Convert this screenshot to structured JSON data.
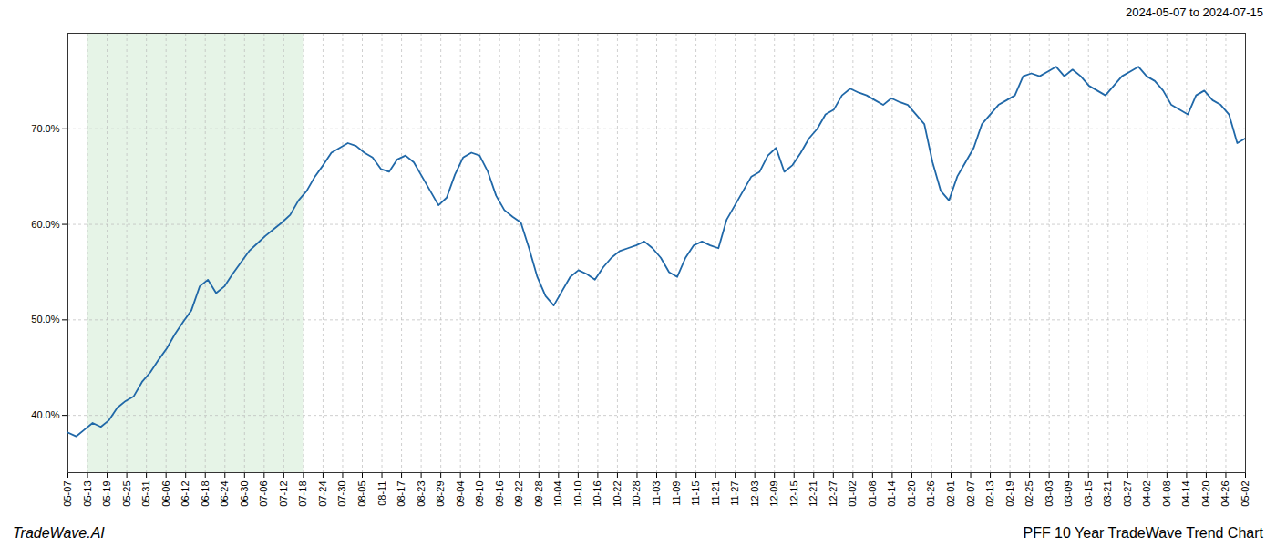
{
  "chart_data": {
    "type": "line",
    "title": "PFF 10 Year TradeWave Trend Chart",
    "subtitle": "2024-05-07 to 2024-07-15",
    "annotations": [
      "TradeWave.AI"
    ],
    "color": "#2068a8",
    "grid": true,
    "xlim": [
      0,
      60
    ],
    "xticks": [
      {
        "value": 0,
        "label": "05-07"
      },
      {
        "value": 1,
        "label": "05-13"
      },
      {
        "value": 2,
        "label": "05-19"
      },
      {
        "value": 3,
        "label": "05-25"
      },
      {
        "value": 4,
        "label": "05-31"
      },
      {
        "value": 5,
        "label": "06-06"
      },
      {
        "value": 6,
        "label": "06-12"
      },
      {
        "value": 7,
        "label": "06-18"
      },
      {
        "value": 8,
        "label": "06-24"
      },
      {
        "value": 9,
        "label": "06-30"
      },
      {
        "value": 10,
        "label": "07-06"
      },
      {
        "value": 11,
        "label": "07-12"
      },
      {
        "value": 12,
        "label": "07-18"
      },
      {
        "value": 13,
        "label": "07-24"
      },
      {
        "value": 14,
        "label": "07-30"
      },
      {
        "value": 15,
        "label": "08-05"
      },
      {
        "value": 16,
        "label": "08-11"
      },
      {
        "value": 17,
        "label": "08-17"
      },
      {
        "value": 18,
        "label": "08-23"
      },
      {
        "value": 19,
        "label": "08-29"
      },
      {
        "value": 20,
        "label": "09-04"
      },
      {
        "value": 21,
        "label": "09-10"
      },
      {
        "value": 22,
        "label": "09-16"
      },
      {
        "value": 23,
        "label": "09-22"
      },
      {
        "value": 24,
        "label": "09-28"
      },
      {
        "value": 25,
        "label": "10-04"
      },
      {
        "value": 26,
        "label": "10-10"
      },
      {
        "value": 27,
        "label": "10-16"
      },
      {
        "value": 28,
        "label": "10-22"
      },
      {
        "value": 29,
        "label": "10-28"
      },
      {
        "value": 30,
        "label": "11-03"
      },
      {
        "value": 31,
        "label": "11-09"
      },
      {
        "value": 32,
        "label": "11-15"
      },
      {
        "value": 33,
        "label": "11-21"
      },
      {
        "value": 34,
        "label": "11-27"
      },
      {
        "value": 35,
        "label": "12-03"
      },
      {
        "value": 36,
        "label": "12-09"
      },
      {
        "value": 37,
        "label": "12-15"
      },
      {
        "value": 38,
        "label": "12-21"
      },
      {
        "value": 39,
        "label": "12-27"
      },
      {
        "value": 40,
        "label": "01-02"
      },
      {
        "value": 41,
        "label": "01-08"
      },
      {
        "value": 42,
        "label": "01-14"
      },
      {
        "value": 43,
        "label": "01-20"
      },
      {
        "value": 44,
        "label": "01-26"
      },
      {
        "value": 45,
        "label": "02-01"
      },
      {
        "value": 46,
        "label": "02-07"
      },
      {
        "value": 47,
        "label": "02-13"
      },
      {
        "value": 48,
        "label": "02-19"
      },
      {
        "value": 49,
        "label": "02-25"
      },
      {
        "value": 50,
        "label": "03-03"
      },
      {
        "value": 51,
        "label": "03-09"
      },
      {
        "value": 52,
        "label": "03-15"
      },
      {
        "value": 53,
        "label": "03-21"
      },
      {
        "value": 54,
        "label": "03-27"
      },
      {
        "value": 55,
        "label": "04-02"
      },
      {
        "value": 56,
        "label": "04-08"
      },
      {
        "value": 57,
        "label": "04-14"
      },
      {
        "value": 58,
        "label": "04-20"
      },
      {
        "value": 59,
        "label": "04-26"
      },
      {
        "value": 60,
        "label": "05-02"
      }
    ],
    "ylim": [
      34.0,
      80.0
    ],
    "yticks": [
      {
        "value": 40.0,
        "label": "40.0%"
      },
      {
        "value": 50.0,
        "label": "50.0%"
      },
      {
        "value": 60.0,
        "label": "60.0%"
      },
      {
        "value": 70.0,
        "label": "70.0%"
      }
    ],
    "spans": [
      {
        "x": [
          1,
          12
        ],
        "color": "#c8e6c9"
      }
    ],
    "x": [
      0,
      0.41958,
      0.839161,
      1.258741,
      1.678322,
      2.097902,
      2.517483,
      2.937063,
      3.356643,
      3.776224,
      4.195804,
      4.615385,
      5.034965,
      5.454545,
      5.874126,
      6.293706,
      6.713287,
      7.132867,
      7.552448,
      7.972028,
      8.391608,
      8.811189,
      9.230769,
      9.65035,
      10.06993,
      10.48951,
      10.909091,
      11.328671,
      11.748252,
      12.167832,
      12.587413,
      13.006993,
      13.426573,
      13.846154,
      14.265734,
      14.685315,
      15.104895,
      15.524476,
      15.944056,
      16.363636,
      16.783217,
      17.202797,
      17.622378,
      18.041958,
      18.461538,
      18.881119,
      19.300699,
      19.72028,
      20.13986,
      20.559441,
      20.979021,
      21.398601,
      21.818182,
      22.237762,
      22.657343,
      23.076923,
      23.496503,
      23.916084,
      24.335664,
      24.755245,
      25.174825,
      25.594406,
      26.013986,
      26.433566,
      26.853147,
      27.272727,
      27.692308,
      28.111888,
      28.531469,
      28.951049,
      29.370629,
      29.79021,
      30.20979,
      30.629371,
      31.048951,
      31.468531,
      31.888112,
      32.307692,
      32.727273,
      33.146853,
      33.566434,
      33.986014,
      34.405594,
      34.825175,
      35.244755,
      35.664336,
      36.083916,
      36.503497,
      36.923077,
      37.342657,
      37.762238,
      38.181818,
      38.601399,
      39.020979,
      39.440559,
      39.86014,
      40.27972,
      40.699301,
      41.118881,
      41.538462,
      41.958042,
      42.377622,
      42.797203,
      43.216783,
      43.636364,
      44.055944,
      44.475524,
      44.895105,
      45.314685,
      45.734266,
      46.153846,
      46.573427,
      46.993007,
      47.412587,
      47.832168,
      48.251748,
      48.671329,
      49.090909,
      49.51049,
      49.93007,
      50.34965,
      50.769231,
      51.188811,
      51.608392,
      52.027972,
      52.447552,
      52.867133,
      53.286713,
      53.706294,
      54.125874,
      54.545455,
      54.965035,
      55.384615,
      55.804196,
      56.223776,
      56.643357,
      57.062937,
      57.482517,
      57.902098,
      58.321678,
      58.741259,
      59.160839,
      59.58042,
      60
    ],
    "values": [
      38.2,
      37.8,
      38.5,
      39.2,
      38.8,
      39.5,
      40.8,
      41.5,
      42.0,
      43.5,
      44.5,
      45.8,
      47.0,
      48.5,
      49.8,
      51.0,
      53.5,
      54.2,
      52.8,
      53.5,
      54.8,
      56.0,
      57.2,
      58.0,
      58.8,
      59.5,
      60.2,
      61.0,
      62.5,
      63.5,
      65.0,
      66.2,
      67.5,
      68.0,
      68.5,
      68.2,
      67.5,
      67.0,
      65.8,
      65.5,
      66.8,
      67.2,
      66.5,
      65.0,
      63.5,
      62.0,
      62.8,
      65.2,
      67.0,
      67.5,
      67.2,
      65.5,
      63.0,
      61.5,
      60.8,
      60.2,
      57.5,
      54.5,
      52.5,
      51.5,
      53.0,
      54.5,
      55.2,
      54.8,
      54.2,
      55.5,
      56.5,
      57.2,
      57.5,
      57.8,
      58.2,
      57.5,
      56.5,
      55.0,
      54.5,
      56.5,
      57.8,
      58.2,
      57.8,
      57.5,
      60.5,
      62.0,
      63.5,
      65.0,
      65.5,
      67.2,
      68.0,
      65.5,
      66.2,
      67.5,
      69.0,
      70.0,
      71.5,
      72.0,
      73.5,
      74.2,
      73.8,
      73.5,
      73.0,
      72.5,
      73.2,
      72.8,
      72.5,
      71.5,
      70.5,
      66.5,
      63.5,
      62.5,
      65.0,
      66.5,
      68.0,
      70.5,
      71.5,
      72.5,
      73.0,
      73.5,
      75.5,
      75.8,
      75.5,
      76.0,
      76.5,
      75.5,
      76.2,
      75.5,
      74.5,
      74.0,
      73.5,
      74.5,
      75.5,
      76.0,
      76.5,
      75.5,
      75.0,
      74.0,
      72.5,
      72.0,
      71.5,
      73.5,
      74.0,
      73.0,
      72.5,
      71.5,
      68.5,
      69.0
    ]
  }
}
